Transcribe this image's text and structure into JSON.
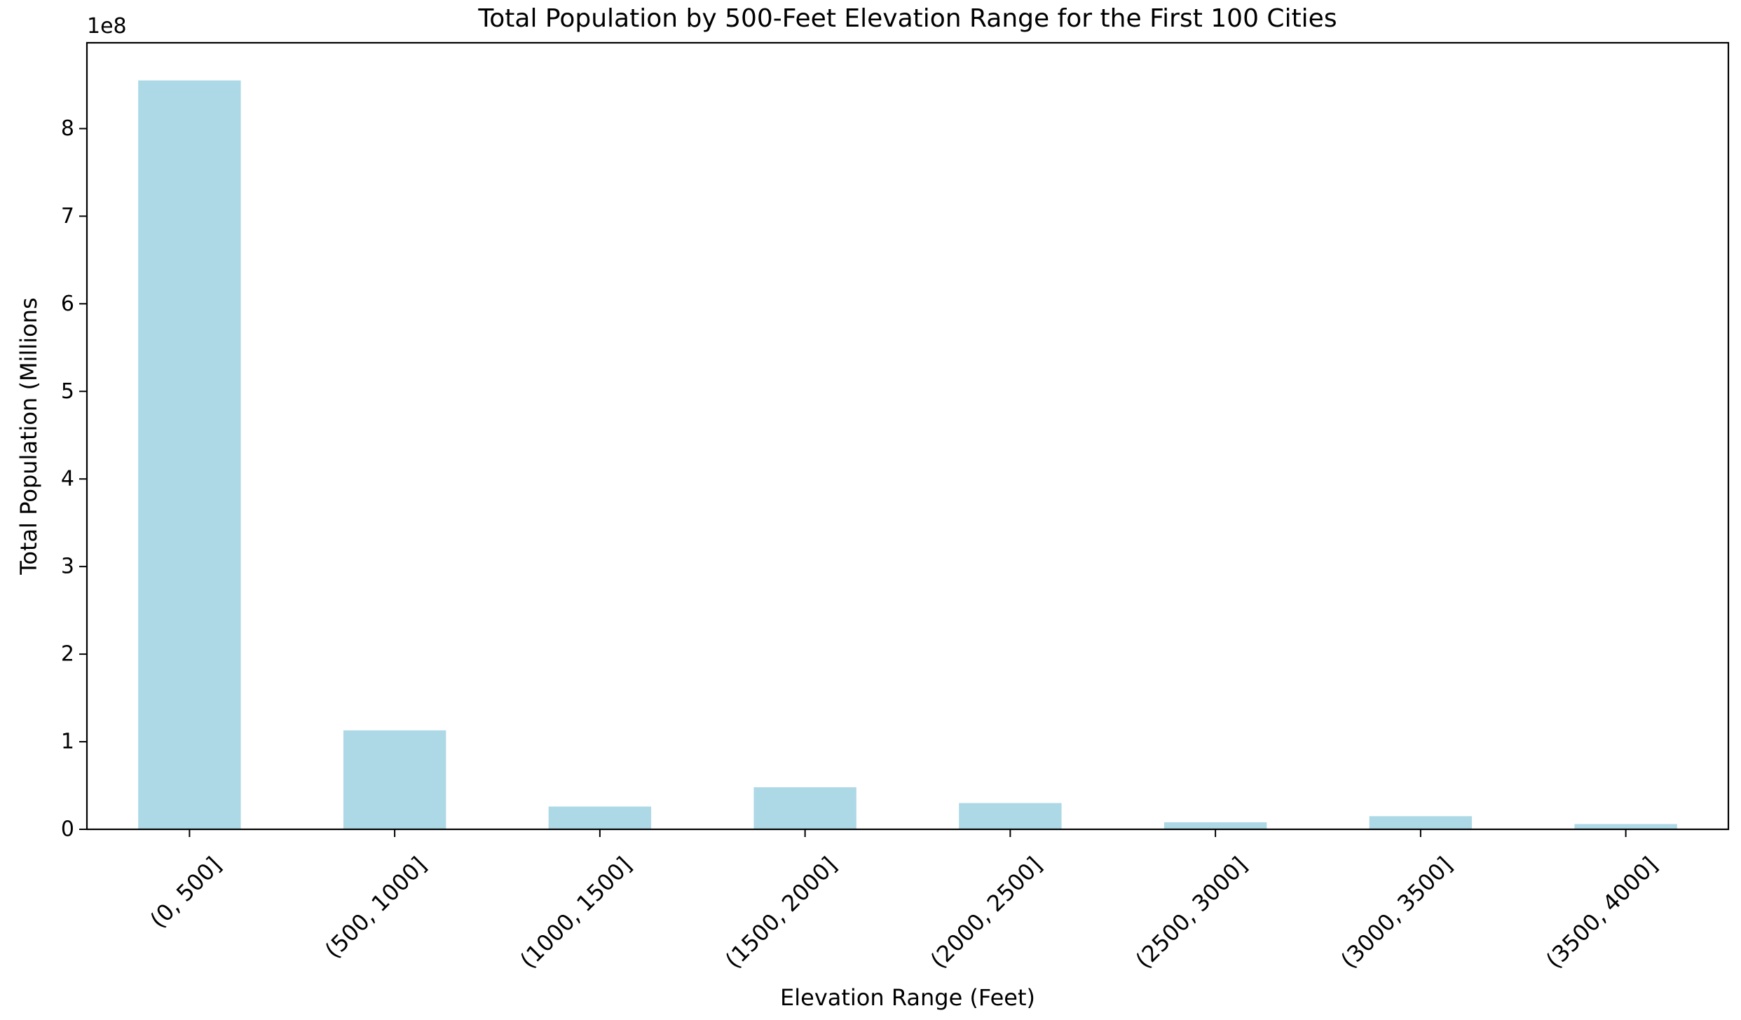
{
  "chart_data": {
    "type": "bar",
    "title": "Total Population by 500-Feet Elevation Range for the First 100 Cities",
    "xlabel": "Elevation Range (Feet)",
    "ylabel": "Total Population (Millions",
    "offset_label": "1e8",
    "categories": [
      "(0, 500]",
      "(500, 1000]",
      "(1000, 1500]",
      "(1500, 2000]",
      "(2000, 2500]",
      "(2500, 3000]",
      "(3000, 3500]",
      "(3500, 4000]"
    ],
    "values": [
      855000000,
      113000000,
      26000000,
      48000000,
      30000000,
      8000000,
      15000000,
      6000000
    ],
    "ylim": [
      0,
      8.98
    ],
    "yscale": 100000000,
    "yticks": [
      0,
      1,
      2,
      3,
      4,
      5,
      6,
      7,
      8
    ],
    "grid": false,
    "colors": {
      "bar": "#add8e6"
    }
  }
}
